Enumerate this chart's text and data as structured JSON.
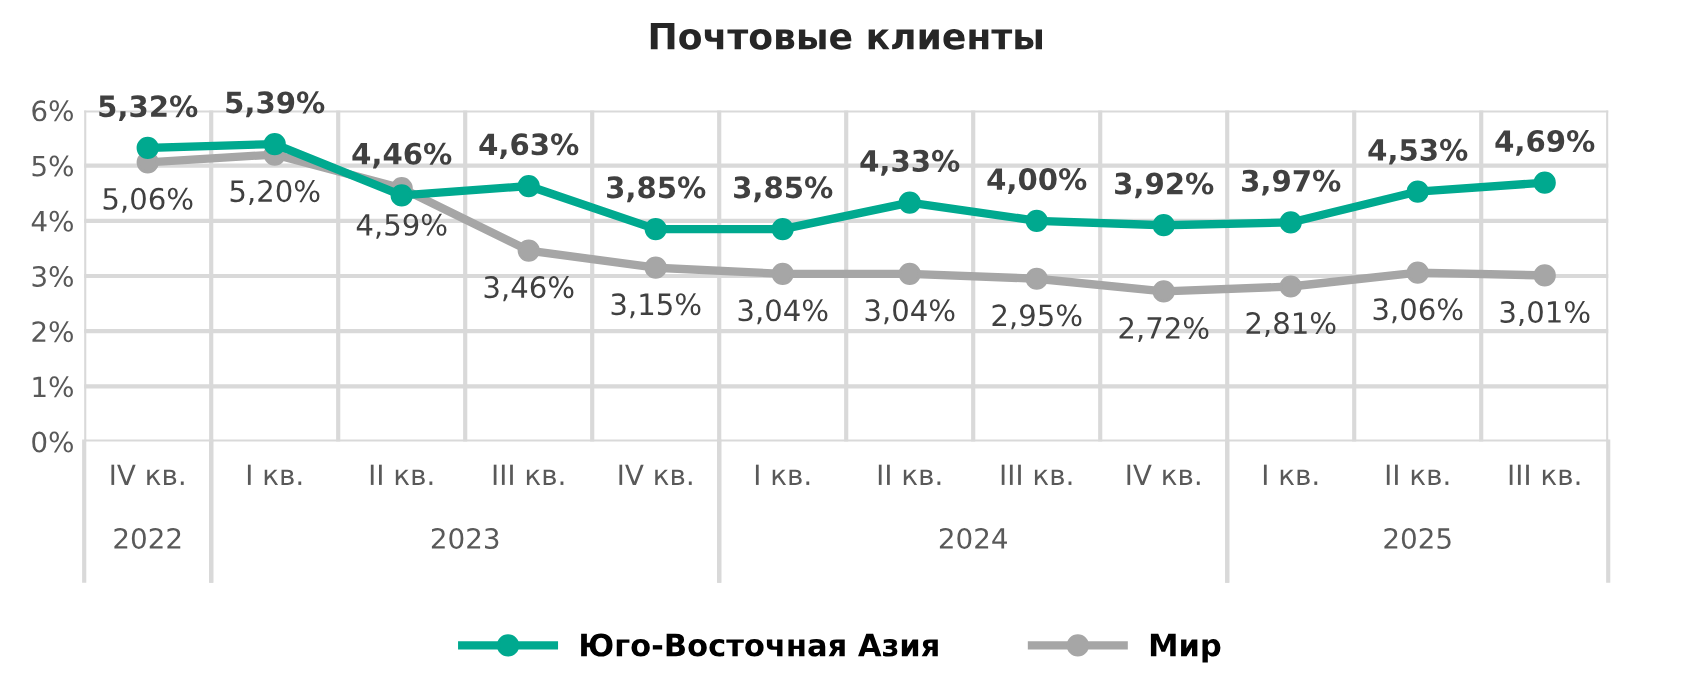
{
  "chart_data": {
    "type": "line",
    "title": "Почтовые клиенты",
    "categories": [
      "IV кв.",
      "I кв.",
      "II кв.",
      "III кв.",
      "IV кв.",
      "I кв.",
      "II кв.",
      "III кв.",
      "IV кв.",
      "I кв.",
      "II кв.",
      "III кв."
    ],
    "series": [
      {
        "name": "Юго-Восточная Азия",
        "color": "#00a98f",
        "values": [
          5.32,
          5.39,
          4.46,
          4.63,
          3.85,
          3.85,
          4.33,
          4.0,
          3.92,
          3.97,
          4.53,
          4.69
        ],
        "value_labels": [
          "5,32%",
          "5,39%",
          "4,46%",
          "4,63%",
          "3,85%",
          "3,85%",
          "4,33%",
          "4,00%",
          "3,92%",
          "3,97%",
          "4,53%",
          "4,69%"
        ]
      },
      {
        "name": "Мир",
        "color": "#a6a6a6",
        "values": [
          5.06,
          5.2,
          4.59,
          3.46,
          3.15,
          3.04,
          3.04,
          2.95,
          2.72,
          2.81,
          3.06,
          3.01
        ],
        "value_labels": [
          "5,06%",
          "5,20%",
          "4,59%",
          "3,46%",
          "3,15%",
          "3,04%",
          "3,04%",
          "2,95%",
          "2,72%",
          "2,81%",
          "3,06%",
          "3,01%"
        ]
      }
    ],
    "ylim": [
      0,
      6
    ],
    "yticks": [
      {
        "value": 0,
        "label": "0%"
      },
      {
        "value": 1,
        "label": "1%"
      },
      {
        "value": 2,
        "label": "2%"
      },
      {
        "value": 3,
        "label": "3%"
      },
      {
        "value": 4,
        "label": "4%"
      },
      {
        "value": 5,
        "label": "5%"
      },
      {
        "value": 6,
        "label": "6%"
      }
    ],
    "annotations": [
      "2022",
      "2023",
      "2024",
      "2025"
    ],
    "grid": true,
    "legend": "bottom",
    "marker": "circle",
    "line_style": "solid"
  }
}
